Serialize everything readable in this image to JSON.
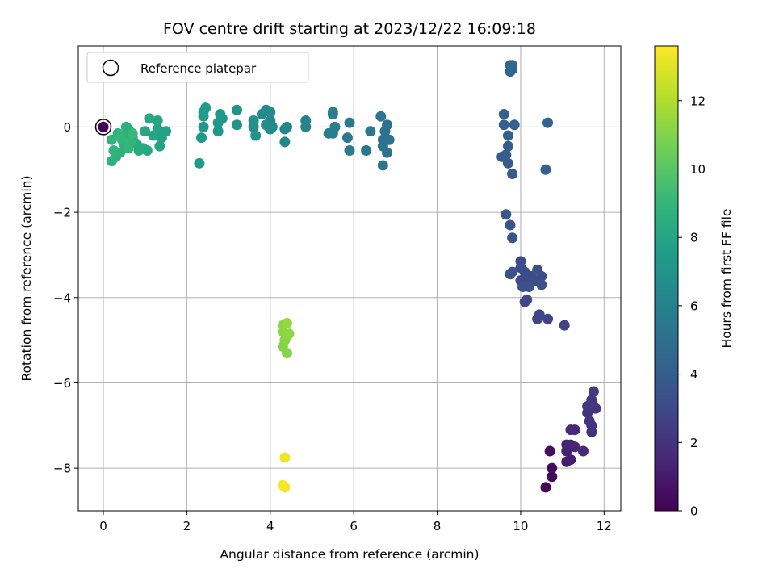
{
  "chart_data": {
    "type": "scatter",
    "title": "FOV centre drift starting at 2023/12/22 16:09:18",
    "xlabel": "Angular distance from reference (arcmin)",
    "ylabel": "Rotation from reference (arcmin)",
    "xlim": [
      -0.6,
      12.4
    ],
    "ylim": [
      -9.0,
      1.9
    ],
    "xticks": [
      0,
      2,
      4,
      6,
      8,
      10,
      12
    ],
    "yticks": [
      -8,
      -6,
      -4,
      -2,
      0
    ],
    "grid": true,
    "legend": {
      "position": "top-left",
      "entries": [
        "Reference platepar"
      ]
    },
    "reference_point": {
      "x": 0,
      "y": 0
    },
    "colorbar": {
      "label": "Hours from first FF file",
      "range": [
        0,
        13.6
      ],
      "ticks": [
        0,
        2,
        4,
        6,
        8,
        10,
        12
      ],
      "colormap": "viridis"
    },
    "points": [
      {
        "x": 0.0,
        "y": 0.0,
        "t": 0.0
      },
      {
        "x": 10.6,
        "y": -8.45,
        "t": 0.2
      },
      {
        "x": 10.75,
        "y": -8.2,
        "t": 0.3
      },
      {
        "x": 10.75,
        "y": -8.0,
        "t": 0.4
      },
      {
        "x": 10.7,
        "y": -7.6,
        "t": 0.5
      },
      {
        "x": 11.1,
        "y": -7.85,
        "t": 1.0
      },
      {
        "x": 11.2,
        "y": -7.8,
        "t": 1.1
      },
      {
        "x": 11.1,
        "y": -7.6,
        "t": 1.2
      },
      {
        "x": 11.1,
        "y": -7.45,
        "t": 1.3
      },
      {
        "x": 11.2,
        "y": -7.45,
        "t": 1.3
      },
      {
        "x": 11.3,
        "y": -7.5,
        "t": 1.4
      },
      {
        "x": 11.2,
        "y": -7.1,
        "t": 1.5
      },
      {
        "x": 11.3,
        "y": -7.1,
        "t": 1.5
      },
      {
        "x": 11.5,
        "y": -7.6,
        "t": 1.6
      },
      {
        "x": 11.7,
        "y": -7.15,
        "t": 1.8
      },
      {
        "x": 11.7,
        "y": -7.0,
        "t": 1.9
      },
      {
        "x": 11.65,
        "y": -6.9,
        "t": 2.0
      },
      {
        "x": 11.6,
        "y": -6.7,
        "t": 2.0
      },
      {
        "x": 11.7,
        "y": -6.5,
        "t": 2.1
      },
      {
        "x": 11.8,
        "y": -6.6,
        "t": 2.1
      },
      {
        "x": 11.6,
        "y": -6.55,
        "t": 2.2
      },
      {
        "x": 11.7,
        "y": -6.4,
        "t": 2.2
      },
      {
        "x": 11.75,
        "y": -6.2,
        "t": 2.3
      },
      {
        "x": 11.05,
        "y": -4.65,
        "t": 2.6
      },
      {
        "x": 10.65,
        "y": -4.5,
        "t": 2.7
      },
      {
        "x": 10.4,
        "y": -4.5,
        "t": 2.8
      },
      {
        "x": 10.45,
        "y": -4.4,
        "t": 2.8
      },
      {
        "x": 10.15,
        "y": -4.05,
        "t": 2.9
      },
      {
        "x": 10.1,
        "y": -4.1,
        "t": 2.9
      },
      {
        "x": 10.0,
        "y": -3.6,
        "t": 3.0
      },
      {
        "x": 10.1,
        "y": -3.7,
        "t": 3.0
      },
      {
        "x": 10.2,
        "y": -3.6,
        "t": 3.0
      },
      {
        "x": 10.25,
        "y": -3.5,
        "t": 3.1
      },
      {
        "x": 10.1,
        "y": -3.4,
        "t": 3.1
      },
      {
        "x": 10.0,
        "y": -3.3,
        "t": 3.1
      },
      {
        "x": 10.0,
        "y": -3.15,
        "t": 3.2
      },
      {
        "x": 10.35,
        "y": -3.6,
        "t": 3.2
      },
      {
        "x": 10.5,
        "y": -3.5,
        "t": 3.2
      },
      {
        "x": 10.4,
        "y": -3.35,
        "t": 3.3
      },
      {
        "x": 10.5,
        "y": -3.7,
        "t": 3.3
      },
      {
        "x": 10.05,
        "y": -3.75,
        "t": 3.3
      },
      {
        "x": 10.2,
        "y": -3.75,
        "t": 3.4
      },
      {
        "x": 9.8,
        "y": -3.4,
        "t": 3.4
      },
      {
        "x": 9.75,
        "y": -3.45,
        "t": 3.4
      },
      {
        "x": 9.8,
        "y": -2.6,
        "t": 3.6
      },
      {
        "x": 9.75,
        "y": -2.3,
        "t": 3.6
      },
      {
        "x": 9.65,
        "y": -2.05,
        "t": 3.7
      },
      {
        "x": 9.8,
        "y": -1.1,
        "t": 3.9
      },
      {
        "x": 9.7,
        "y": -0.85,
        "t": 3.9
      },
      {
        "x": 9.65,
        "y": -0.65,
        "t": 4.0
      },
      {
        "x": 9.7,
        "y": -0.45,
        "t": 4.0
      },
      {
        "x": 9.55,
        "y": -0.7,
        "t": 4.0
      },
      {
        "x": 9.7,
        "y": -0.2,
        "t": 4.1
      },
      {
        "x": 9.6,
        "y": 0.05,
        "t": 4.1
      },
      {
        "x": 9.6,
        "y": 0.3,
        "t": 4.2
      },
      {
        "x": 9.85,
        "y": 0.05,
        "t": 4.2
      },
      {
        "x": 10.6,
        "y": -1.0,
        "t": 4.2
      },
      {
        "x": 10.65,
        "y": 0.1,
        "t": 4.3
      },
      {
        "x": 9.75,
        "y": 1.3,
        "t": 4.4
      },
      {
        "x": 9.8,
        "y": 1.35,
        "t": 4.4
      },
      {
        "x": 9.75,
        "y": 1.45,
        "t": 4.5
      },
      {
        "x": 9.8,
        "y": 1.45,
        "t": 4.5
      },
      {
        "x": 6.8,
        "y": 0.05,
        "t": 5.0
      },
      {
        "x": 6.85,
        "y": -0.3,
        "t": 5.0
      },
      {
        "x": 6.75,
        "y": -0.1,
        "t": 5.1
      },
      {
        "x": 6.7,
        "y": -0.3,
        "t": 5.1
      },
      {
        "x": 6.7,
        "y": -0.45,
        "t": 5.2
      },
      {
        "x": 6.8,
        "y": -0.6,
        "t": 5.2
      },
      {
        "x": 6.7,
        "y": -0.9,
        "t": 5.3
      },
      {
        "x": 6.65,
        "y": 0.25,
        "t": 5.3
      },
      {
        "x": 6.4,
        "y": -0.1,
        "t": 5.4
      },
      {
        "x": 6.3,
        "y": -0.55,
        "t": 5.4
      },
      {
        "x": 5.9,
        "y": 0.1,
        "t": 5.6
      },
      {
        "x": 5.85,
        "y": -0.25,
        "t": 5.6
      },
      {
        "x": 5.9,
        "y": -0.55,
        "t": 5.7
      },
      {
        "x": 5.5,
        "y": 0.3,
        "t": 5.8
      },
      {
        "x": 5.5,
        "y": 0.35,
        "t": 5.8
      },
      {
        "x": 5.55,
        "y": 0.0,
        "t": 5.9
      },
      {
        "x": 5.5,
        "y": -0.15,
        "t": 5.9
      },
      {
        "x": 5.4,
        "y": -0.15,
        "t": 5.9
      },
      {
        "x": 4.85,
        "y": 0.0,
        "t": 6.1
      },
      {
        "x": 4.85,
        "y": 0.15,
        "t": 6.1
      },
      {
        "x": 4.4,
        "y": 0.0,
        "t": 6.2
      },
      {
        "x": 4.35,
        "y": -0.05,
        "t": 6.2
      },
      {
        "x": 4.35,
        "y": -0.35,
        "t": 6.3
      },
      {
        "x": 4.05,
        "y": 0.0,
        "t": 6.4
      },
      {
        "x": 4.0,
        "y": 0.15,
        "t": 6.4
      },
      {
        "x": 4.0,
        "y": 0.35,
        "t": 6.5
      },
      {
        "x": 3.9,
        "y": 0.4,
        "t": 6.5
      },
      {
        "x": 3.8,
        "y": 0.3,
        "t": 6.5
      },
      {
        "x": 3.9,
        "y": 0.05,
        "t": 6.6
      },
      {
        "x": 4.0,
        "y": -0.05,
        "t": 6.6
      },
      {
        "x": 3.6,
        "y": 0.15,
        "t": 6.8
      },
      {
        "x": 3.6,
        "y": 0.0,
        "t": 6.8
      },
      {
        "x": 3.65,
        "y": -0.2,
        "t": 6.9
      },
      {
        "x": 3.2,
        "y": 0.05,
        "t": 7.0
      },
      {
        "x": 3.2,
        "y": 0.4,
        "t": 7.0
      },
      {
        "x": 2.8,
        "y": 0.3,
        "t": 7.1
      },
      {
        "x": 2.85,
        "y": 0.2,
        "t": 7.1
      },
      {
        "x": 2.75,
        "y": 0.1,
        "t": 7.2
      },
      {
        "x": 2.75,
        "y": -0.1,
        "t": 7.2
      },
      {
        "x": 2.4,
        "y": 0.0,
        "t": 7.3
      },
      {
        "x": 2.35,
        "y": -0.25,
        "t": 7.3
      },
      {
        "x": 2.3,
        "y": -0.85,
        "t": 7.4
      },
      {
        "x": 2.4,
        "y": 0.35,
        "t": 7.4
      },
      {
        "x": 2.45,
        "y": 0.45,
        "t": 7.5
      },
      {
        "x": 2.4,
        "y": 0.25,
        "t": 7.5
      },
      {
        "x": 1.5,
        "y": -0.1,
        "t": 7.8
      },
      {
        "x": 1.4,
        "y": -0.25,
        "t": 7.8
      },
      {
        "x": 1.35,
        "y": -0.45,
        "t": 7.9
      },
      {
        "x": 1.3,
        "y": -0.05,
        "t": 7.9
      },
      {
        "x": 1.3,
        "y": 0.15,
        "t": 8.0
      },
      {
        "x": 1.2,
        "y": -0.2,
        "t": 8.0
      },
      {
        "x": 1.1,
        "y": 0.2,
        "t": 8.1
      },
      {
        "x": 1.0,
        "y": -0.1,
        "t": 8.1
      },
      {
        "x": 1.05,
        "y": -0.55,
        "t": 8.2
      },
      {
        "x": 0.95,
        "y": -0.5,
        "t": 8.2
      },
      {
        "x": 0.85,
        "y": -0.55,
        "t": 8.3
      },
      {
        "x": 0.8,
        "y": -0.4,
        "t": 8.3
      },
      {
        "x": 0.7,
        "y": -0.25,
        "t": 8.4
      },
      {
        "x": 0.6,
        "y": -0.05,
        "t": 8.4
      },
      {
        "x": 0.55,
        "y": 0.0,
        "t": 8.5
      },
      {
        "x": 0.5,
        "y": -0.2,
        "t": 8.5
      },
      {
        "x": 0.5,
        "y": -0.4,
        "t": 8.6
      },
      {
        "x": 0.4,
        "y": -0.6,
        "t": 8.6
      },
      {
        "x": 0.3,
        "y": -0.7,
        "t": 8.7
      },
      {
        "x": 0.2,
        "y": -0.8,
        "t": 8.7
      },
      {
        "x": 0.25,
        "y": -0.55,
        "t": 8.8
      },
      {
        "x": 0.2,
        "y": -0.3,
        "t": 8.8
      },
      {
        "x": 0.35,
        "y": -0.15,
        "t": 8.9
      },
      {
        "x": 0.45,
        "y": -0.3,
        "t": 8.9
      },
      {
        "x": 0.6,
        "y": -0.5,
        "t": 9.0
      },
      {
        "x": 0.65,
        "y": -0.35,
        "t": 9.0
      },
      {
        "x": 0.7,
        "y": -0.15,
        "t": 9.1
      },
      {
        "x": 4.3,
        "y": -5.15,
        "t": 11.0
      },
      {
        "x": 4.4,
        "y": -5.3,
        "t": 11.1
      },
      {
        "x": 4.35,
        "y": -5.0,
        "t": 11.1
      },
      {
        "x": 4.4,
        "y": -4.9,
        "t": 11.2
      },
      {
        "x": 4.3,
        "y": -4.8,
        "t": 11.2
      },
      {
        "x": 4.45,
        "y": -4.85,
        "t": 11.3
      },
      {
        "x": 4.3,
        "y": -4.65,
        "t": 11.3
      },
      {
        "x": 4.4,
        "y": -4.6,
        "t": 11.4
      },
      {
        "x": 4.35,
        "y": -7.75,
        "t": 13.3
      },
      {
        "x": 4.3,
        "y": -8.4,
        "t": 13.4
      },
      {
        "x": 4.35,
        "y": -8.45,
        "t": 13.5
      }
    ]
  }
}
